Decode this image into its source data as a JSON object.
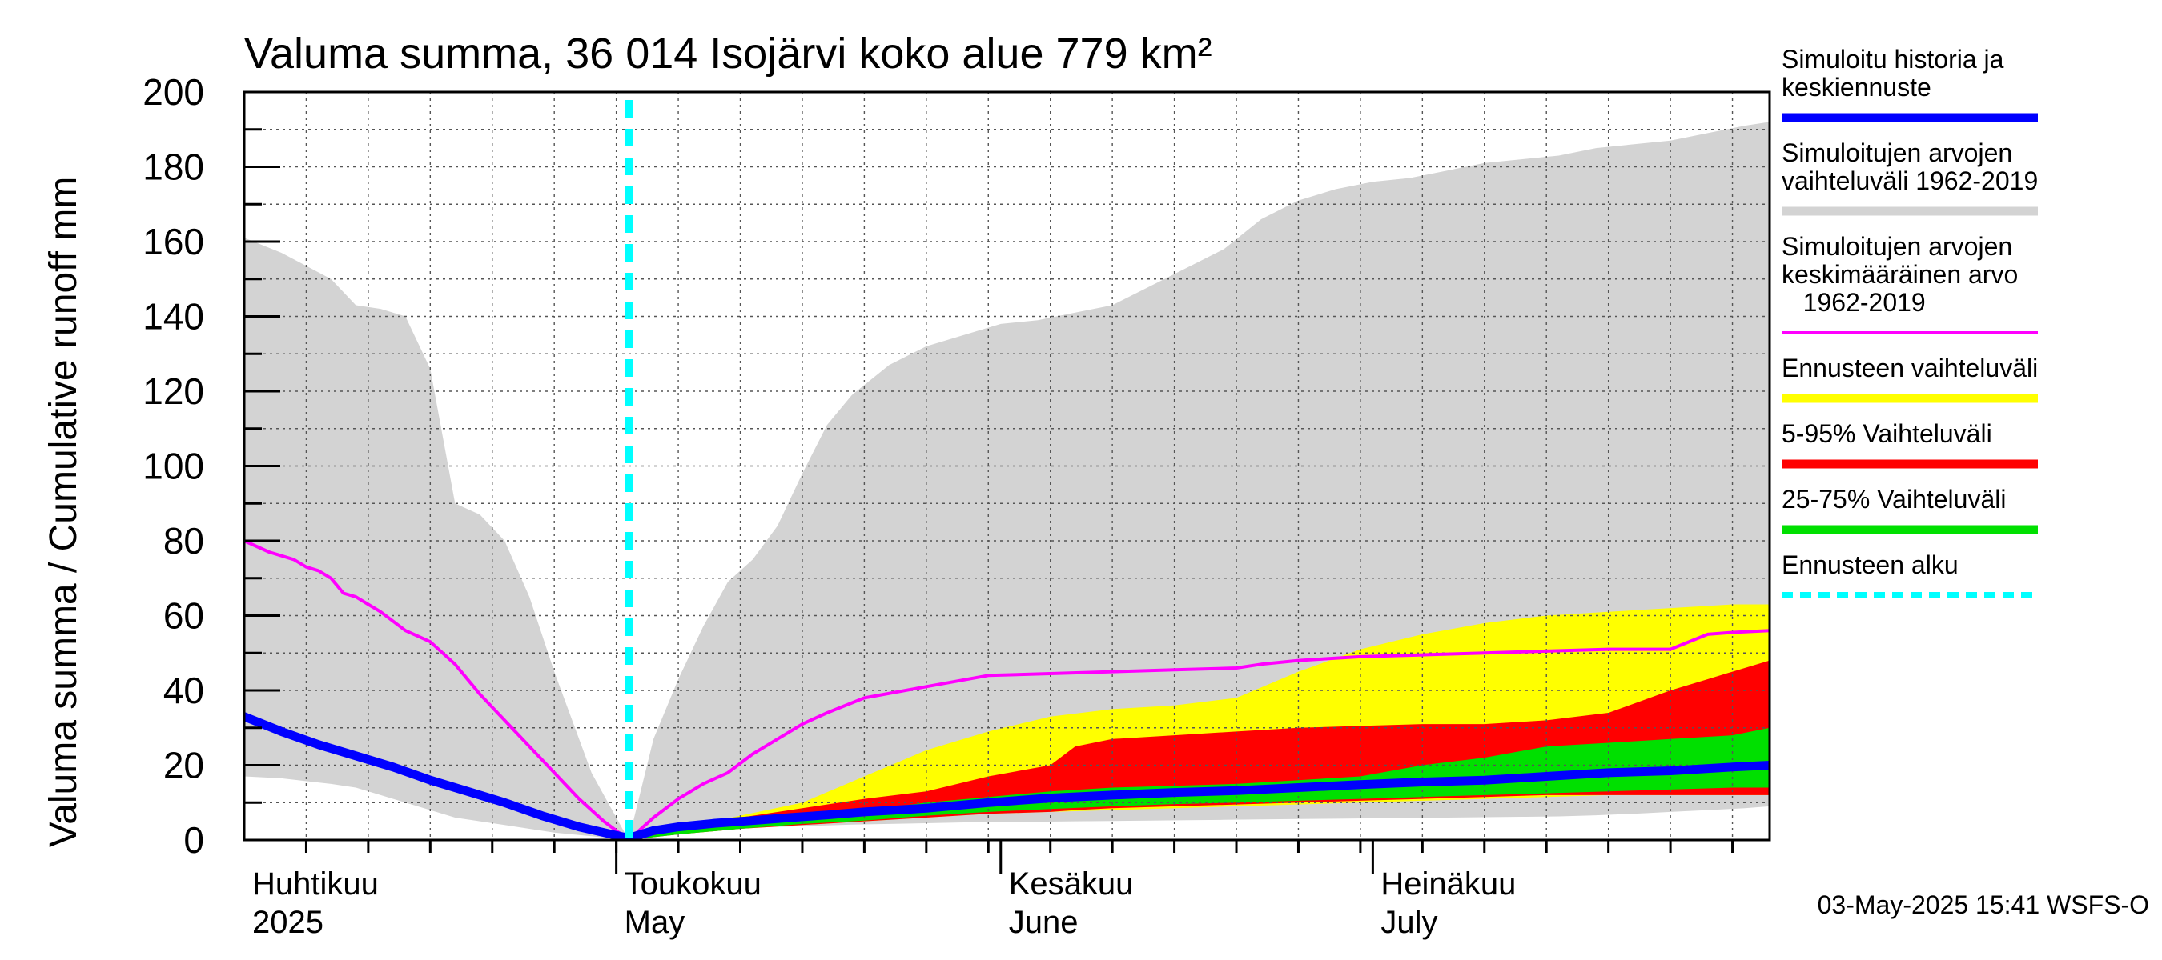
{
  "title": "Valuma summa, 36 014 Isojärvi koko alue 779 km²",
  "ylabel": "Valuma summa / Cumulative runoff     mm",
  "timestamp": "03-May-2025 15:41 WSFS-O",
  "months": [
    {
      "fi": "Huhtikuu",
      "en": "2025",
      "day": 1
    },
    {
      "fi": "Toukokuu",
      "en": "May",
      "day": 31
    },
    {
      "fi": "Kesäkuu",
      "en": "June",
      "day": 62
    },
    {
      "fi": "Heinäkuu",
      "en": "July",
      "day": 92
    }
  ],
  "legend": [
    {
      "lines": [
        "Simuloitu historia ja",
        "keskiennuste"
      ],
      "color": "#0000ff",
      "style": "thick"
    },
    {
      "lines": [
        "Simuloitujen arvojen",
        "vaihteluväli 1962-2019"
      ],
      "color": "#d3d3d3",
      "style": "thick"
    },
    {
      "lines": [
        "Simuloitujen arvojen",
        "keskimääräinen arvo",
        "   1962-2019"
      ],
      "color": "#ff00ff",
      "style": "thin"
    },
    {
      "lines": [
        "Ennusteen vaihteluväli"
      ],
      "color": "#ffff00",
      "style": "thick"
    },
    {
      "lines": [
        "5-95% Vaihteluväli"
      ],
      "color": "#ff0000",
      "style": "thick"
    },
    {
      "lines": [
        "25-75% Vaihteluväli"
      ],
      "color": "#00e000",
      "style": "thick"
    },
    {
      "lines": [
        "Ennusteen alku"
      ],
      "color": "#00ffff",
      "style": "dashed"
    }
  ],
  "chart_data": {
    "type": "area",
    "x_unit": "day of season (1 = 1 April 2025)",
    "xlim": [
      0,
      123
    ],
    "ylim": [
      0,
      200
    ],
    "yticks": [
      0,
      20,
      40,
      60,
      80,
      100,
      120,
      140,
      160,
      180,
      200
    ],
    "grid": true,
    "forecast_start_day": 31,
    "series": [
      {
        "name": "Simuloitujen arvojen vaihteluväli 1962-2019",
        "kind": "band",
        "color": "#d3d3d3",
        "x": [
          0,
          3,
          7,
          9,
          11,
          13,
          15,
          17,
          19,
          21,
          23,
          25,
          28,
          31,
          33,
          35,
          37,
          39,
          41,
          43,
          45,
          47,
          49,
          52,
          55,
          58,
          61,
          64,
          67,
          70,
          73,
          76,
          79,
          82,
          85,
          88,
          91,
          94,
          97,
          100,
          103,
          106,
          109,
          112,
          115,
          118,
          121,
          123
        ],
        "upper": [
          161,
          157,
          150,
          143,
          142,
          140,
          126,
          90,
          87,
          80,
          65,
          45,
          18,
          0,
          27,
          43,
          57,
          69,
          75,
          84,
          98,
          111,
          119,
          127,
          132,
          135,
          138,
          139,
          141,
          143,
          148,
          153,
          158,
          166,
          171,
          174,
          176,
          177,
          179,
          181,
          182,
          183,
          185,
          186,
          187,
          189,
          191,
          192
        ],
        "lower": [
          17,
          16.5,
          15,
          14,
          12,
          10,
          8,
          6,
          5,
          4,
          3,
          2,
          1,
          0,
          1.2,
          2,
          2.5,
          3,
          3.3,
          3.5,
          3.7,
          3.9,
          4.1,
          4.3,
          4.5,
          4.7,
          4.8,
          4.9,
          5,
          5.1,
          5.2,
          5.3,
          5.4,
          5.5,
          5.6,
          5.7,
          5.8,
          5.9,
          6,
          6.1,
          6.2,
          6.3,
          6.6,
          7,
          7.5,
          8,
          8.5,
          9
        ]
      },
      {
        "name": "Ennusteen vaihteluväli",
        "kind": "band",
        "color": "#ffff00",
        "x": [
          31,
          35,
          40,
          45,
          50,
          55,
          60,
          65,
          70,
          75,
          80,
          85,
          90,
          95,
          100,
          105,
          110,
          115,
          120,
          123
        ],
        "upper": [
          0,
          3,
          6.5,
          10,
          17,
          24,
          29,
          33,
          35,
          36,
          38,
          45,
          51,
          55,
          58,
          60,
          61,
          62,
          63,
          63
        ],
        "lower": [
          0,
          1.5,
          3,
          4,
          5,
          6,
          7,
          7.5,
          8,
          8.5,
          9,
          9.5,
          10,
          10.5,
          11,
          11.5,
          12,
          12,
          12,
          12
        ]
      },
      {
        "name": "5-95% Vaihteluväli",
        "kind": "band",
        "color": "#ff0000",
        "x": [
          31,
          35,
          40,
          45,
          50,
          55,
          60,
          65,
          67,
          70,
          75,
          80,
          85,
          90,
          95,
          100,
          105,
          110,
          115,
          118,
          120,
          123
        ],
        "upper": [
          0,
          3,
          6,
          8.5,
          11,
          13,
          17,
          20,
          25,
          27,
          28,
          29,
          30,
          30.5,
          31,
          31,
          32,
          34,
          40,
          43,
          45,
          48
        ],
        "lower": [
          0,
          1.5,
          3,
          4,
          5,
          6,
          7,
          7.5,
          8,
          8.5,
          9,
          9.5,
          10,
          10.5,
          11,
          11.5,
          12,
          12,
          12,
          12,
          12,
          12
        ]
      },
      {
        "name": "25-75% Vaihteluväli",
        "kind": "band",
        "color": "#00e000",
        "x": [
          31,
          35,
          40,
          45,
          50,
          55,
          60,
          65,
          70,
          75,
          80,
          85,
          90,
          95,
          100,
          105,
          110,
          115,
          120,
          123
        ],
        "upper": [
          0,
          2.5,
          4.5,
          6.5,
          8,
          10,
          11.5,
          13,
          14,
          14.5,
          15,
          16,
          17,
          20,
          22,
          25,
          26,
          27,
          28,
          30
        ],
        "lower": [
          0,
          1.5,
          3,
          4.3,
          5.2,
          6.5,
          7.5,
          8.3,
          9,
          9.6,
          10,
          10.5,
          11,
          11.5,
          12,
          12.5,
          13,
          13.5,
          14,
          14
        ]
      },
      {
        "name": "Simuloitujen arvojen keskimääräinen arvo 1962-2019",
        "kind": "line",
        "color": "#ff00ff",
        "x": [
          0,
          2,
          3,
          4,
          5,
          6,
          7,
          8,
          9,
          10,
          11,
          13,
          15,
          17,
          19,
          21,
          23,
          25,
          27,
          29,
          31,
          33,
          35,
          37,
          39,
          41,
          43,
          45,
          47,
          50,
          55,
          60,
          65,
          70,
          75,
          80,
          82,
          85,
          90,
          95,
          100,
          105,
          110,
          115,
          118,
          120,
          123
        ],
        "y": [
          80,
          77,
          76,
          75,
          73,
          72,
          70,
          66,
          65,
          63,
          61,
          56,
          53,
          47,
          39,
          32,
          25,
          18,
          11,
          5,
          0,
          6,
          11,
          15,
          18,
          23,
          27,
          31,
          34,
          38,
          41,
          44,
          44.5,
          45,
          45.5,
          46,
          47,
          48,
          49,
          49.5,
          50,
          50.5,
          51,
          51,
          55,
          55.5,
          56
        ]
      },
      {
        "name": "Simuloitu historia ja keskiennuste",
        "kind": "line",
        "color": "#0000ff",
        "x": [
          0,
          3,
          6,
          9,
          12,
          15,
          18,
          21,
          24,
          27,
          29,
          31,
          33,
          35,
          38,
          41,
          44,
          47,
          50,
          55,
          60,
          65,
          70,
          75,
          80,
          85,
          90,
          95,
          100,
          105,
          110,
          115,
          120,
          123
        ],
        "y": [
          33,
          29,
          25.5,
          22.5,
          19.5,
          16,
          13,
          10,
          6.5,
          3.5,
          2,
          0.5,
          2.5,
          3.5,
          4.5,
          5.2,
          6,
          6.7,
          7.5,
          8.5,
          10,
          11.2,
          12,
          12.7,
          13.2,
          14,
          14.8,
          15.5,
          16,
          17,
          18,
          18.5,
          19.5,
          20
        ]
      }
    ]
  }
}
